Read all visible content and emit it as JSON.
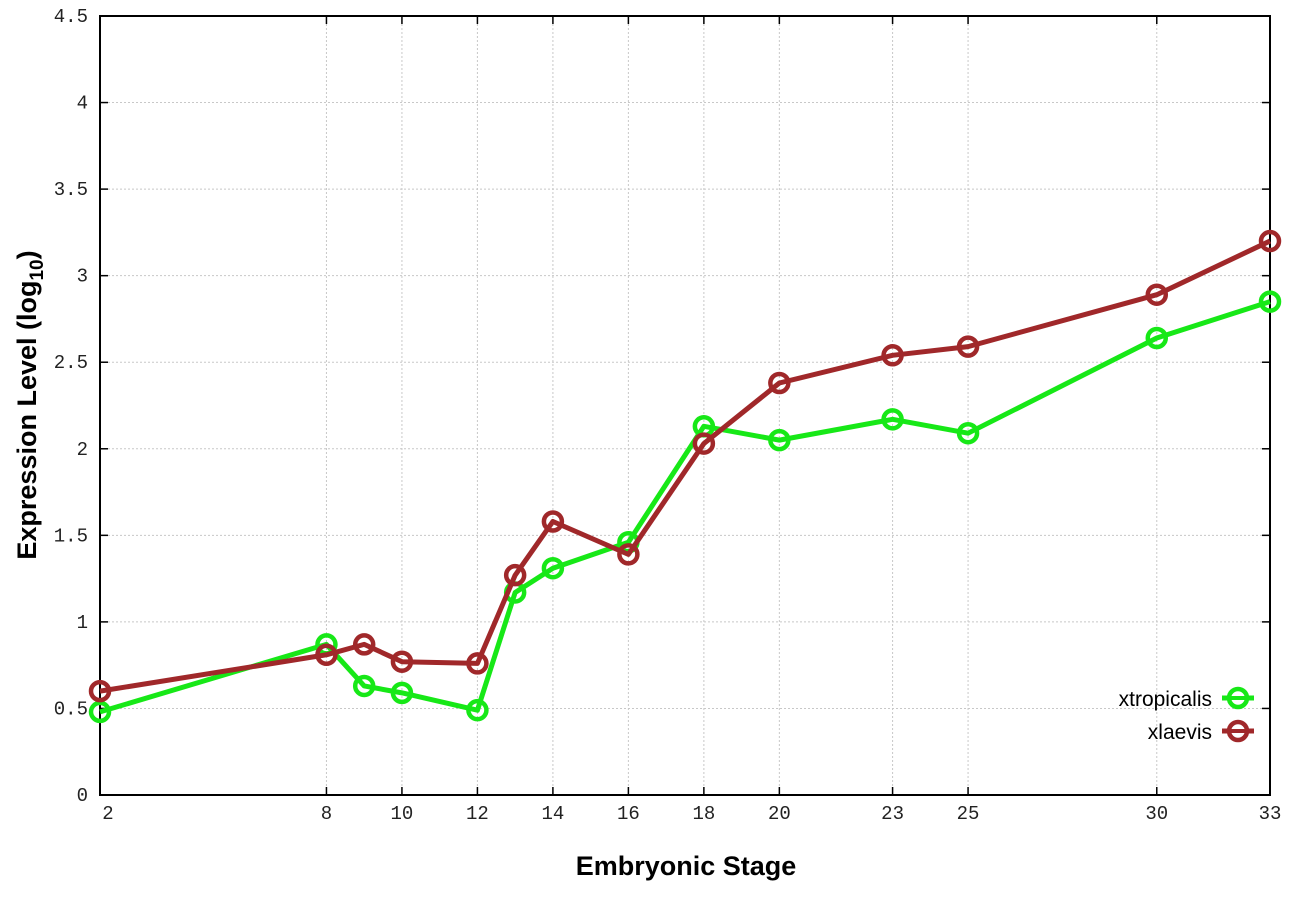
{
  "chart_data": {
    "type": "line",
    "title": "",
    "xlabel": "Embryonic Stage",
    "ylabel": {
      "prefix": "Expression Level (log",
      "sub": "10",
      "suffix": ")"
    },
    "xlim": [
      2,
      33
    ],
    "ylim": [
      0,
      4.5
    ],
    "grid": true,
    "legend_position": "bottom-right",
    "x_ticks": [
      2,
      8,
      10,
      12,
      14,
      16,
      18,
      20,
      23,
      25,
      30,
      33
    ],
    "y_ticks": [
      "0",
      "0.5",
      "1",
      "1.5",
      "2",
      "2.5",
      "3",
      "3.5",
      "4",
      "4.5"
    ],
    "x": [
      2,
      8,
      9,
      10,
      12,
      13,
      14,
      16,
      18,
      20,
      23,
      25,
      30,
      33
    ],
    "series": [
      {
        "name": "xtropicalis",
        "color": "#17e817",
        "values": [
          0.48,
          0.87,
          0.63,
          0.59,
          0.49,
          1.17,
          1.31,
          1.46,
          2.13,
          2.05,
          2.17,
          2.09,
          2.64,
          2.85
        ]
      },
      {
        "name": "xlaevis",
        "color": "#a0282a",
        "values": [
          0.6,
          0.81,
          0.87,
          0.77,
          0.76,
          1.27,
          1.58,
          1.39,
          2.03,
          2.38,
          2.54,
          2.59,
          2.89,
          3.2
        ]
      }
    ]
  }
}
